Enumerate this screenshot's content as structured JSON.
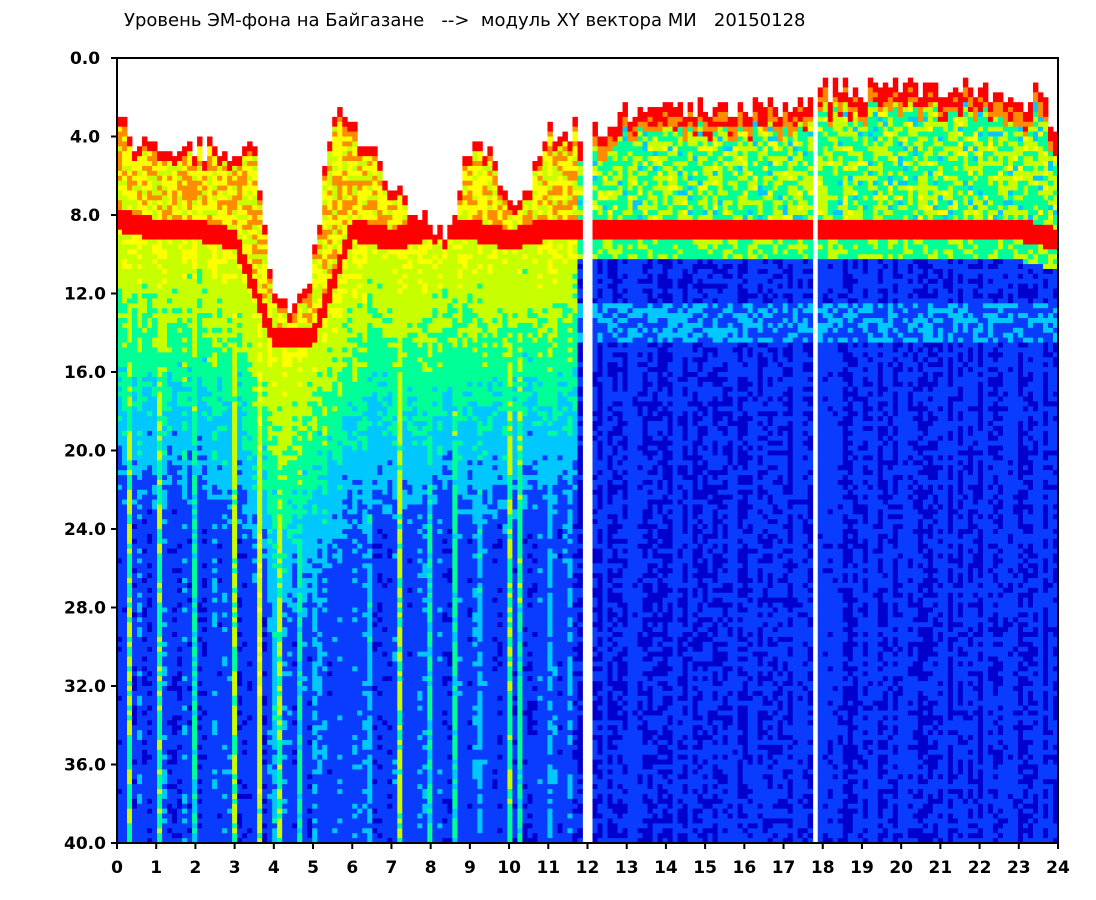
{
  "chart_data": {
    "type": "heatmap",
    "title": "Уровень ЭМ-фона на Байгазане   -->  модуль XY вектора МИ   20150128",
    "xlabel": "",
    "ylabel": "",
    "xlim": [
      0,
      24
    ],
    "ylim": [
      0.0,
      40.0
    ],
    "y_inverted": true,
    "x_ticks": [
      "0",
      "1",
      "2",
      "3",
      "4",
      "5",
      "6",
      "7",
      "8",
      "9",
      "10",
      "11",
      "12",
      "13",
      "14",
      "15",
      "16",
      "17",
      "18",
      "19",
      "20",
      "21",
      "22",
      "23",
      "24"
    ],
    "y_ticks": [
      "0.0",
      "4.0",
      "8.0",
      "12.0",
      "16.0",
      "20.0",
      "24.0",
      "28.0",
      "32.0",
      "36.0",
      "40.0"
    ],
    "grid": false,
    "colorscale": [
      "#0000cc",
      "#0a3cff",
      "#00c8ff",
      "#00ff96",
      "#c8ff00",
      "#ffff00",
      "#ff8c00",
      "#ff0000"
    ],
    "gaps_white_at_x": [
      12.0,
      17.8
    ],
    "upper_envelope_y_estimate": {
      "x": [
        0,
        0.5,
        1,
        1.5,
        2,
        2.5,
        3,
        3.5,
        4,
        4.5,
        5,
        5.5,
        6,
        6.5,
        7,
        7.5,
        8,
        8.5,
        9,
        9.5,
        10,
        10.5,
        11,
        11.5,
        12,
        12.5,
        13,
        14,
        15,
        16,
        17,
        18,
        19,
        20,
        21,
        22,
        23,
        23.5,
        24
      ],
      "y": [
        2,
        4,
        4,
        4,
        4,
        4,
        5,
        4,
        12,
        12,
        10,
        2,
        3,
        4,
        6,
        7,
        8,
        8,
        4,
        4,
        7,
        6,
        3,
        3,
        3,
        3,
        2,
        2,
        2,
        2,
        2,
        1,
        1,
        1,
        1,
        1,
        2,
        1,
        4
      ]
    },
    "dense_band_top_y_estimate": {
      "x": [
        0,
        1,
        2,
        3,
        4,
        5,
        6,
        7,
        8,
        9,
        10,
        11,
        12,
        13,
        14,
        15,
        16,
        17,
        18,
        19,
        20,
        21,
        22,
        23,
        24
      ],
      "y": [
        8,
        8.5,
        8.5,
        9,
        14,
        14,
        8.5,
        9,
        8.5,
        8.5,
        9,
        8.5,
        8.5,
        8.5,
        8.5,
        8.5,
        8.5,
        8.5,
        8.5,
        8.5,
        8.5,
        8.5,
        8.5,
        8.5,
        9
      ]
    },
    "deep_signal_bands_x": [
      {
        "x": 0.3,
        "level": 0.55
      },
      {
        "x": 1.1,
        "level": 0.5
      },
      {
        "x": 2.0,
        "level": 0.45
      },
      {
        "x": 3.0,
        "level": 0.5
      },
      {
        "x": 3.65,
        "level": 0.6
      },
      {
        "x": 4.1,
        "level": 0.8
      },
      {
        "x": 4.7,
        "level": 0.55
      },
      {
        "x": 5.1,
        "level": 0.45
      },
      {
        "x": 6.4,
        "level": 0.45
      },
      {
        "x": 7.2,
        "level": 0.55
      },
      {
        "x": 8.0,
        "level": 0.45
      },
      {
        "x": 8.6,
        "level": 0.45
      },
      {
        "x": 9.2,
        "level": 0.5
      },
      {
        "x": 10.0,
        "level": 0.55
      },
      {
        "x": 10.3,
        "level": 0.5
      },
      {
        "x": 11.0,
        "level": 0.4
      },
      {
        "x": 11.5,
        "level": 0.4
      }
    ]
  }
}
